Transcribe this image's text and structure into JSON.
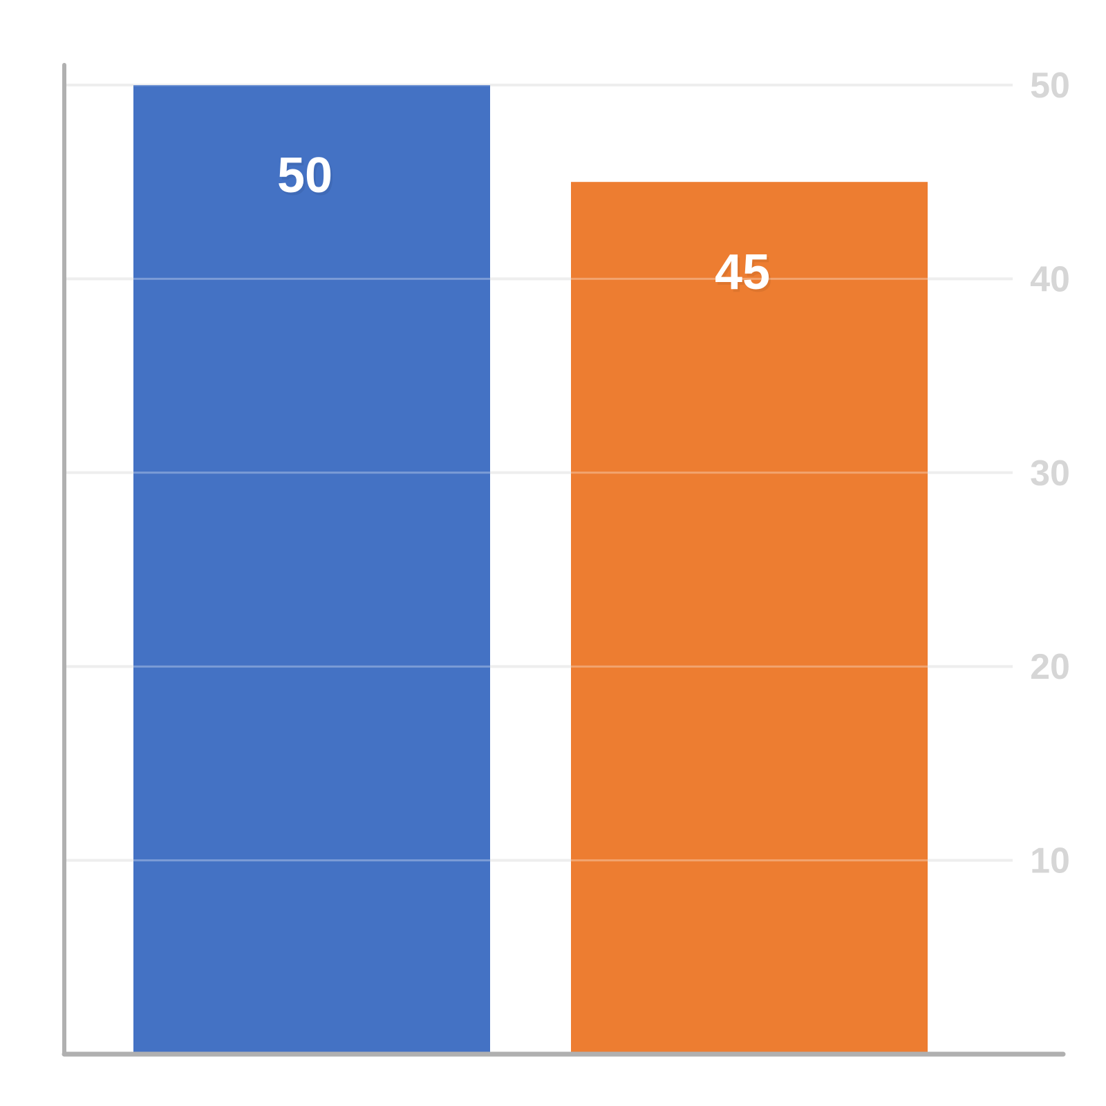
{
  "chart_data": {
    "type": "bar",
    "title": "",
    "xlabel": "",
    "ylabel": "",
    "ylim": [
      0,
      50
    ],
    "grid": true,
    "y_axis_side": "right",
    "y_ticks": [
      10,
      20,
      30,
      40,
      50
    ],
    "y_tick_labels": [
      "10",
      "20",
      "30",
      "40",
      "50"
    ],
    "bars": [
      {
        "value": 50,
        "label": "50",
        "color": "#4472c4"
      },
      {
        "value": 45,
        "label": "45",
        "color": "#ed7d31"
      }
    ],
    "colors": {
      "axis": "#b0b0b0",
      "grid": "#eeeeee",
      "tick_label": "#d6d6d6",
      "data_label": "#ffffff"
    }
  }
}
